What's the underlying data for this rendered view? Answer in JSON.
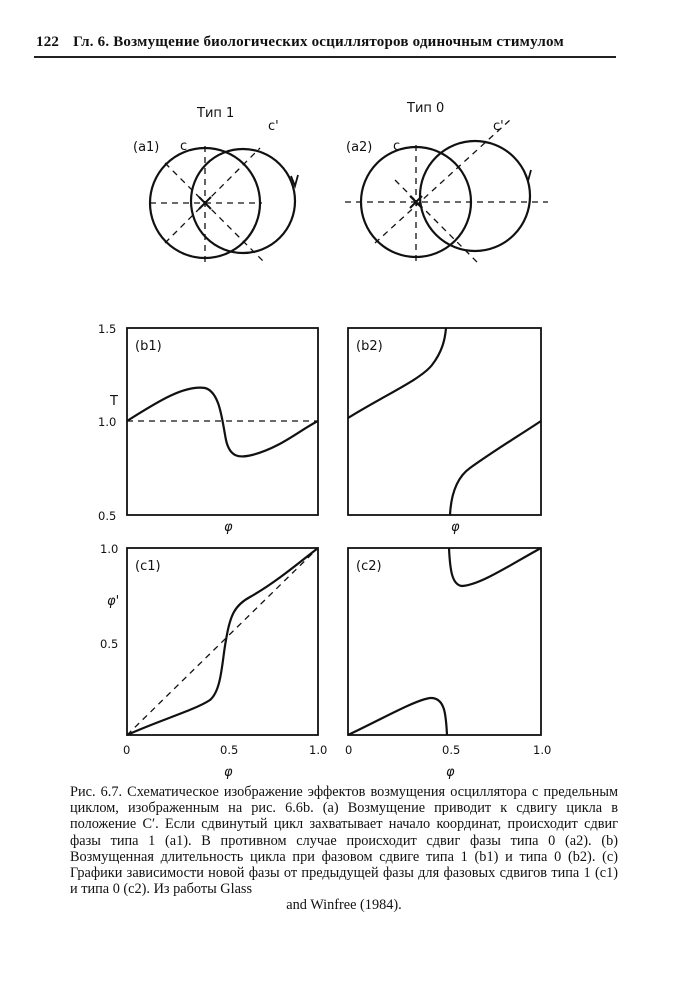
{
  "header": {
    "page_number": "122",
    "running_title": "Гл. 6. Возмущение биологических осцилляторов одиночным стимулом"
  },
  "figure": {
    "panel_a1": {
      "title": "Тип 1",
      "label": "(a1)",
      "c": "c",
      "c_prime": "c'"
    },
    "panel_a2": {
      "title": "Тип 0",
      "label": "(a2)",
      "c": "c",
      "c_prime": "c'"
    },
    "panel_b1": {
      "label": "(b1)"
    },
    "panel_b2": {
      "label": "(b2)"
    },
    "panel_c1": {
      "label": "(c1)"
    },
    "panel_c2": {
      "label": "(c2)"
    },
    "b_axis": {
      "ylabel": "T",
      "yticks": [
        "1.5",
        "1.0",
        "0.5"
      ],
      "xlabel": "φ"
    },
    "c_axis": {
      "ylabel": "φ'",
      "yticks": [
        "1.0",
        "0.5"
      ],
      "xticks": [
        "0",
        "0.5",
        "1.0"
      ],
      "xlabel": "φ"
    }
  },
  "caption": {
    "text": "Рис. 6.7. Схематическое изображение эффектов возмущения осциллятора с предельным циклом, изображенным на рис. 6.6b. (a) Возмущение приводит к сдвигу цикла в положение C′. Если сдвинутый цикл захватывает начало координат, происходит сдвиг фазы типа 1 (a1). В противном случае происходит сдвиг фазы типа 0 (a2). (b) Возмущенная длительность цикла при фазовом сдвиге типа 1 (b1) и типа 0 (b2). (c) Графики зависимости новой фазы от предыдущей фазы для фазовых сдвигов типа 1 (c1) и типа 0 (c2). Из работы Glass",
    "last_line": "and Winfree (1984)."
  }
}
